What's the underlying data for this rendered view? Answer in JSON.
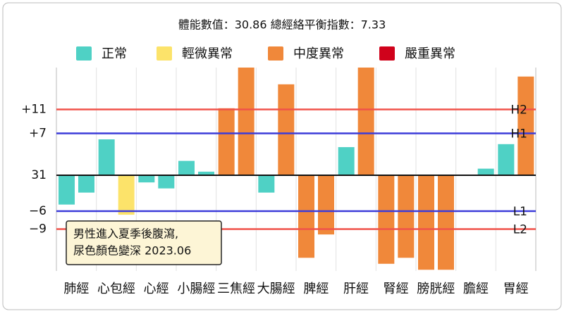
{
  "chart_data": {
    "type": "bar",
    "title": "體能數值：30.86 總經絡平衡指數：7.33",
    "legend": [
      {
        "label": "正常",
        "color": "#4fd1c5"
      },
      {
        "label": "輕微異常",
        "color": "#fce36a"
      },
      {
        "label": "中度異常",
        "color": "#f0883a"
      },
      {
        "label": "嚴重異常",
        "color": "#d0021b"
      }
    ],
    "categories": [
      "肺經",
      "心包經",
      "心經",
      "小腸經",
      "三焦經",
      "大腸經",
      "脾經",
      "肝經",
      "腎經",
      "膀胱經",
      "膽經",
      "胃經"
    ],
    "series": [
      {
        "values": [
          -4.9,
          6.0,
          -1.2,
          2.4,
          11.2,
          -2.9,
          -13.8,
          4.7,
          -14.8,
          -15.8,
          null,
          5.2
        ],
        "colors": [
          "#4fd1c5",
          "#4fd1c5",
          "#4fd1c5",
          "#4fd1c5",
          "#f0883a",
          "#4fd1c5",
          "#f0883a",
          "#4fd1c5",
          "#f0883a",
          "#f0883a",
          null,
          "#4fd1c5"
        ]
      },
      {
        "values": [
          -2.9,
          -6.6,
          -2.2,
          0.6,
          18,
          15.2,
          -9.9,
          18,
          -13.8,
          -15.8,
          1.1,
          16.5
        ],
        "colors": [
          "#4fd1c5",
          "#fce36a",
          "#4fd1c5",
          "#4fd1c5",
          "#f0883a",
          "#f0883a",
          "#f0883a",
          "#f0883a",
          "#f0883a",
          "#f0883a",
          "#4fd1c5",
          "#f0883a"
        ]
      }
    ],
    "ylim": [
      -16,
      18
    ],
    "yticks": [
      {
        "value": 11,
        "label": "+11"
      },
      {
        "value": 7,
        "label": "+7"
      },
      {
        "value": 0,
        "label": "31"
      },
      {
        "value": -6,
        "label": "−6"
      },
      {
        "value": -9,
        "label": "−9"
      }
    ],
    "ref_lines": [
      {
        "value": 11,
        "label": "H2",
        "color": "#f0524a"
      },
      {
        "value": 7,
        "label": "H1",
        "color": "#3b3bd9"
      },
      {
        "value": -6,
        "label": "L1",
        "color": "#3b3bd9"
      },
      {
        "value": -9,
        "label": "L2",
        "color": "#f0524a"
      }
    ],
    "annotation": [
      "男性進入夏季後腹瀉,",
      "尿色顏色變深 2023.06"
    ]
  }
}
